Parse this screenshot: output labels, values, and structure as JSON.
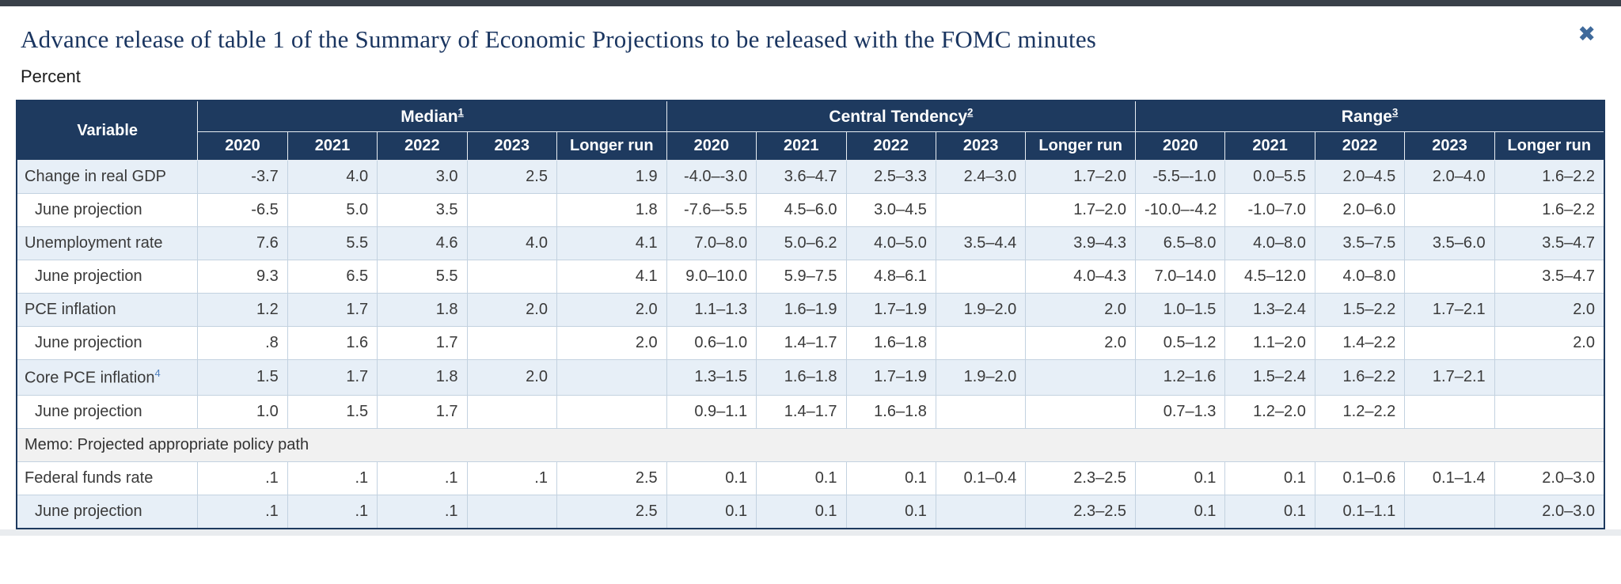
{
  "page": {
    "title": "Advance release of table 1 of the Summary of Economic Projections to be released with the FOMC minutes",
    "subtitle": "Percent",
    "close_glyph": "✖"
  },
  "colors": {
    "header_navy": "#1e3a5f",
    "shaded_row_blue": "#e7eff7",
    "memo_gray": "#f1f1f1",
    "title_navy": "#1a3560",
    "close_blue": "#3f6a9b",
    "link_blue": "#4d7fbe",
    "top_bar": "#394049",
    "cell_border": "#c3d2e0"
  },
  "table": {
    "variable_header": "Variable",
    "groups": [
      {
        "label": "Median",
        "footnote": "1"
      },
      {
        "label": "Central Tendency",
        "footnote": "2"
      },
      {
        "label": "Range",
        "footnote": "3"
      }
    ],
    "year_headers": [
      "2020",
      "2021",
      "2022",
      "2023",
      "Longer run"
    ],
    "rows": [
      {
        "label": "Change in real GDP",
        "indent": false,
        "shaded": true,
        "cells": [
          "-3.7",
          "4.0",
          "3.0",
          "2.5",
          "1.9",
          "-4.0–-3.0",
          "3.6–4.7",
          "2.5–3.3",
          "2.4–3.0",
          "1.7–2.0",
          "-5.5–-1.0",
          "0.0–5.5",
          "2.0–4.5",
          "2.0–4.0",
          "1.6–2.2"
        ]
      },
      {
        "label": "June projection",
        "indent": true,
        "shaded": false,
        "cells": [
          "-6.5",
          "5.0",
          "3.5",
          "",
          "1.8",
          "-7.6–-5.5",
          "4.5–6.0",
          "3.0–4.5",
          "",
          "1.7–2.0",
          "-10.0–-4.2",
          "-1.0–7.0",
          "2.0–6.0",
          "",
          "1.6–2.2"
        ]
      },
      {
        "label": "Unemployment rate",
        "indent": false,
        "shaded": true,
        "cells": [
          "7.6",
          "5.5",
          "4.6",
          "4.0",
          "4.1",
          "7.0–8.0",
          "5.0–6.2",
          "4.0–5.0",
          "3.5–4.4",
          "3.9–4.3",
          "6.5–8.0",
          "4.0–8.0",
          "3.5–7.5",
          "3.5–6.0",
          "3.5–4.7"
        ]
      },
      {
        "label": "June projection",
        "indent": true,
        "shaded": false,
        "cells": [
          "9.3",
          "6.5",
          "5.5",
          "",
          "4.1",
          "9.0–10.0",
          "5.9–7.5",
          "4.8–6.1",
          "",
          "4.0–4.3",
          "7.0–14.0",
          "4.5–12.0",
          "4.0–8.0",
          "",
          "3.5–4.7"
        ]
      },
      {
        "label": "PCE inflation",
        "indent": false,
        "shaded": true,
        "cells": [
          "1.2",
          "1.7",
          "1.8",
          "2.0",
          "2.0",
          "1.1–1.3",
          "1.6–1.9",
          "1.7–1.9",
          "1.9–2.0",
          "2.0",
          "1.0–1.5",
          "1.3–2.4",
          "1.5–2.2",
          "1.7–2.1",
          "2.0"
        ]
      },
      {
        "label": "June projection",
        "indent": true,
        "shaded": false,
        "cells": [
          ".8",
          "1.6",
          "1.7",
          "",
          "2.0",
          "0.6–1.0",
          "1.4–1.7",
          "1.6–1.8",
          "",
          "2.0",
          "0.5–1.2",
          "1.1–2.0",
          "1.4–2.2",
          "",
          "2.0"
        ]
      },
      {
        "label": "Core PCE inflation",
        "footnote": "4",
        "indent": false,
        "shaded": true,
        "cells": [
          "1.5",
          "1.7",
          "1.8",
          "2.0",
          "",
          "1.3–1.5",
          "1.6–1.8",
          "1.7–1.9",
          "1.9–2.0",
          "",
          "1.2–1.6",
          "1.5–2.4",
          "1.6–2.2",
          "1.7–2.1",
          ""
        ]
      },
      {
        "label": "June projection",
        "indent": true,
        "shaded": false,
        "cells": [
          "1.0",
          "1.5",
          "1.7",
          "",
          "",
          "0.9–1.1",
          "1.4–1.7",
          "1.6–1.8",
          "",
          "",
          "0.7–1.3",
          "1.2–2.0",
          "1.2–2.2",
          "",
          ""
        ]
      },
      {
        "label": "Memo: Projected appropriate policy path",
        "memo": true,
        "shaded": false
      },
      {
        "label": "Federal funds rate",
        "indent": false,
        "shaded": false,
        "cells": [
          ".1",
          ".1",
          ".1",
          ".1",
          "2.5",
          "0.1",
          "0.1",
          "0.1",
          "0.1–0.4",
          "2.3–2.5",
          "0.1",
          "0.1",
          "0.1–0.6",
          "0.1–1.4",
          "2.0–3.0"
        ]
      },
      {
        "label": "June projection",
        "indent": true,
        "shaded": true,
        "cells": [
          ".1",
          ".1",
          ".1",
          "",
          "2.5",
          "0.1",
          "0.1",
          "0.1",
          "",
          "2.3–2.5",
          "0.1",
          "0.1",
          "0.1–1.1",
          "",
          "2.0–3.0"
        ]
      }
    ]
  }
}
